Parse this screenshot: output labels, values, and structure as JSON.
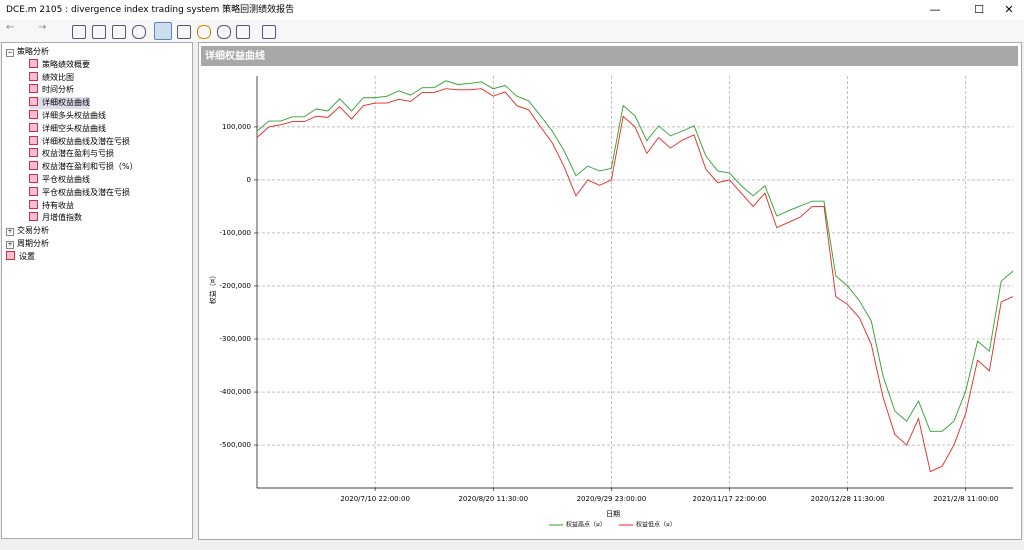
{
  "window": {
    "title": "DCE.m 2105 : divergence index trading system 策略回测绩效报告"
  },
  "tree": [
    {
      "label": "策略分析",
      "children": [
        "策略绩效概要",
        "绩效比图",
        "时间分析",
        "详细权益曲线",
        "详细多头权益曲线",
        "详细空头权益曲线",
        "详细权益曲线及潜在亏损",
        "权益潜在盈利与亏损",
        "权益潜在盈利和亏损（%）",
        "平仓权益曲线",
        "平仓权益曲线及潜在亏损",
        "持有收益",
        "月增值指数"
      ]
    },
    {
      "label": "交易分析"
    },
    {
      "label": "周期分析"
    },
    {
      "label": "设置"
    }
  ],
  "chart_data": {
    "type": "line",
    "title": "详细权益曲线",
    "x_label": "日期",
    "y_label": "权益（¤）",
    "categories": [
      null,
      null,
      null,
      null,
      null,
      null,
      null,
      null,
      null,
      null,
      "2020/7/10 22:00:00",
      null,
      null,
      null,
      null,
      null,
      null,
      null,
      null,
      null,
      "2020/8/20 11:30:00",
      null,
      null,
      null,
      null,
      null,
      null,
      null,
      null,
      null,
      "2020/9/29 23:00:00",
      null,
      null,
      null,
      null,
      null,
      null,
      null,
      null,
      null,
      "2020/11/17 22:00:00",
      null,
      null,
      null,
      null,
      null,
      null,
      null,
      null,
      null,
      "2020/12/28 11:30:00",
      null,
      null,
      null,
      null,
      null,
      null,
      null,
      null,
      null,
      "2021/2/8 11:00:00",
      null,
      null,
      null,
      null
    ],
    "series": [
      {
        "name": "权益高点（¤）",
        "color": "#2ca02c",
        "values": [
          92000,
          111000,
          111000,
          119000,
          119000,
          134000,
          130000,
          153000,
          130000,
          155000,
          155000,
          158000,
          168000,
          160000,
          174000,
          174000,
          187000,
          180000,
          182000,
          185000,
          172000,
          178000,
          158000,
          149000,
          121000,
          92000,
          55000,
          8000,
          26000,
          17000,
          22000,
          140000,
          121000,
          74000,
          102000,
          83000,
          92000,
          102000,
          45000,
          17000,
          13000,
          -11000,
          -30000,
          -11000,
          -68000,
          -58000,
          -49000,
          -40000,
          -40000,
          -181000,
          -200000,
          -228000,
          -266000,
          -370000,
          -436000,
          -455000,
          -417000,
          -474000,
          -474000,
          -455000,
          -398000,
          -304000,
          -323000,
          -191000,
          -172000
        ]
      },
      {
        "name": "权益低点（¤）",
        "color": "#e8271f",
        "values": [
          80000,
          100000,
          104000,
          110000,
          110000,
          120000,
          118000,
          138000,
          115000,
          140000,
          145000,
          145000,
          152000,
          148000,
          165000,
          165000,
          172000,
          170000,
          170000,
          172000,
          158000,
          166000,
          140000,
          132000,
          100000,
          70000,
          25000,
          -30000,
          0,
          -10000,
          0,
          120000,
          100000,
          50000,
          80000,
          60000,
          75000,
          85000,
          20000,
          -5000,
          0,
          -25000,
          -50000,
          -25000,
          -90000,
          -80000,
          -70000,
          -50000,
          -50000,
          -220000,
          -235000,
          -260000,
          -310000,
          -410000,
          -480000,
          -500000,
          -450000,
          -550000,
          -540000,
          -500000,
          -440000,
          -340000,
          -360000,
          -230000,
          -220000
        ]
      }
    ],
    "ylim": [
      -581000,
      196000
    ],
    "yticks": [
      {
        "value": -500000,
        "label": "-500,000"
      },
      {
        "value": -400000,
        "label": "-400,000"
      },
      {
        "value": -300000,
        "label": "-300,000"
      },
      {
        "value": -200000,
        "label": "-200,000"
      },
      {
        "value": -100000,
        "label": "-100,000"
      },
      0,
      {
        "value": 100000,
        "label": "100,000"
      }
    ],
    "grid": true,
    "legend": "bottom"
  }
}
